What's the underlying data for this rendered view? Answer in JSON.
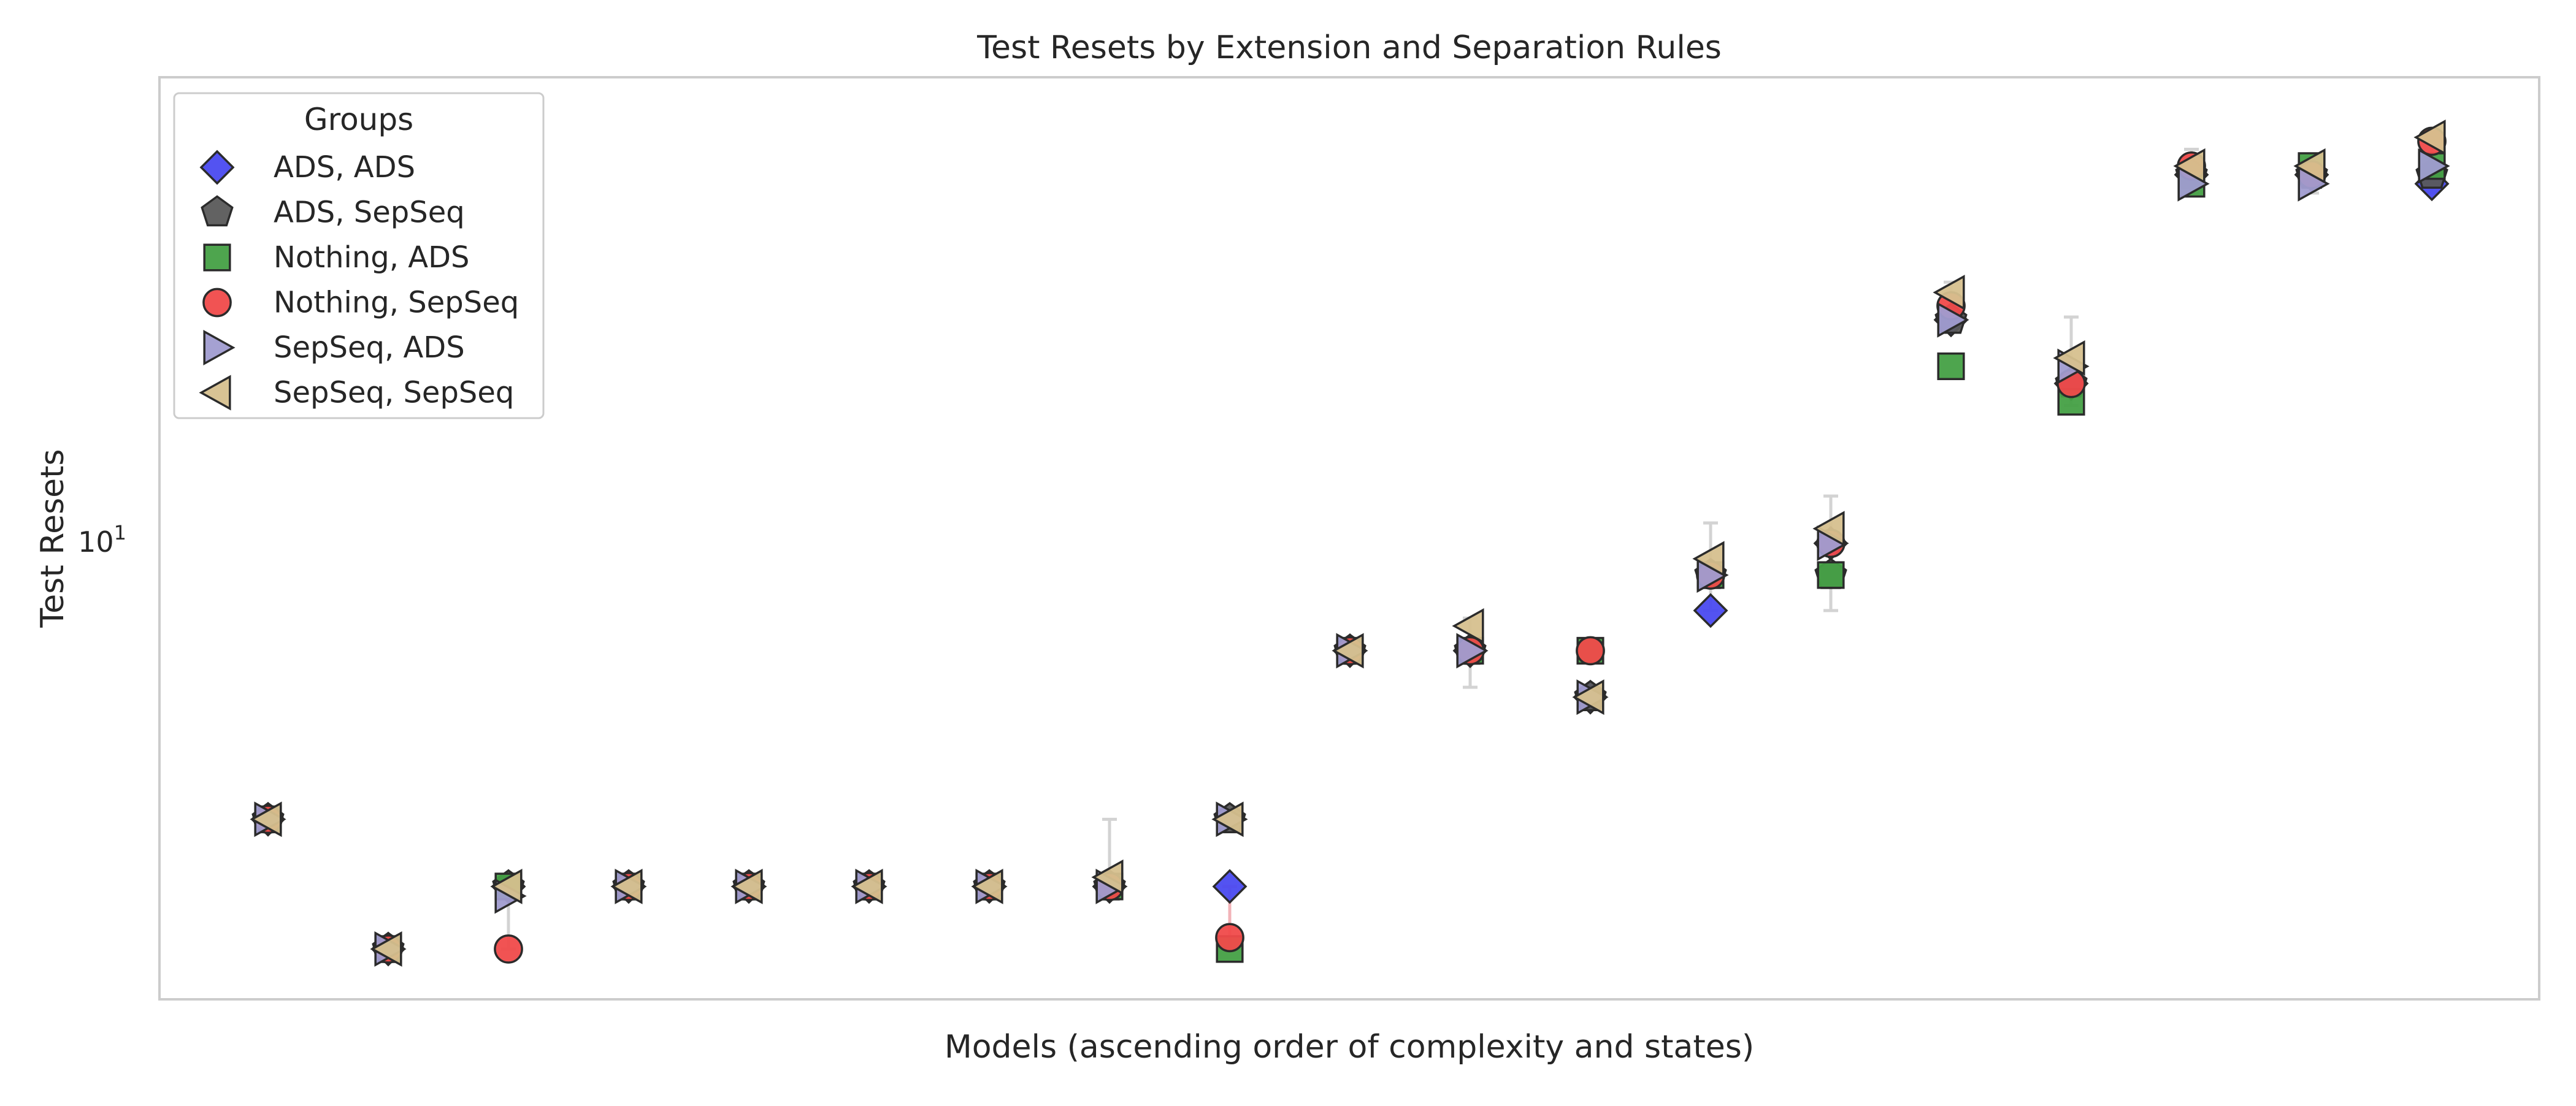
{
  "chart_data": {
    "type": "scatter",
    "title": "Test Resets by Extension and Separation Rules",
    "xlabel": "Models (ascending order of complexity and states)",
    "ylabel": "Test Resets",
    "yscale": "log",
    "ylim": [
      2.2,
      47
    ],
    "y_tick_labels": [
      {
        "value": 10,
        "base": "10",
        "exp": "1"
      }
    ],
    "x": [
      1,
      2,
      3,
      4,
      5,
      6,
      7,
      8,
      9,
      10,
      11,
      12,
      13,
      14,
      15,
      16,
      17,
      18,
      19
    ],
    "grid": false,
    "legend": {
      "title": "Groups",
      "position": "top-left"
    },
    "series": [
      {
        "name": "ADS, ADS",
        "marker": "diamond",
        "color": "#4A4AF0",
        "values": [
          4,
          2.6,
          3.2,
          3.2,
          3.2,
          3.2,
          3.2,
          3.2,
          3.2,
          7,
          7,
          6,
          8,
          10,
          21,
          17,
          34,
          34,
          33
        ]
      },
      {
        "name": "ADS, SepSeq",
        "marker": "pentagon",
        "color": "#5A5A5A",
        "values": [
          4,
          2.6,
          3.2,
          3.2,
          3.2,
          3.2,
          3.2,
          3.2,
          4,
          7,
          7,
          6,
          9,
          9,
          21,
          17,
          34,
          34,
          34
        ]
      },
      {
        "name": "Nothing, ADS",
        "marker": "square",
        "color": "#44A044",
        "values": [
          4,
          2.6,
          3.2,
          3.2,
          3.2,
          3.2,
          3.2,
          3.2,
          2.6,
          7,
          7,
          7,
          9,
          9,
          18,
          16,
          33,
          35,
          35
        ]
      },
      {
        "name": "Nothing, SepSeq",
        "marker": "circle",
        "color": "#F04A4A",
        "values": [
          4,
          2.6,
          2.6,
          3.2,
          3.2,
          3.2,
          3.2,
          3.2,
          2.7,
          7,
          7,
          7,
          9,
          10,
          22,
          17,
          35,
          34,
          38
        ]
      },
      {
        "name": "SepSeq, ADS",
        "marker": "triangle-right",
        "color": "#A09CD0",
        "values": [
          4,
          2.6,
          3.1,
          3.2,
          3.2,
          3.2,
          3.2,
          3.2,
          4,
          7,
          7,
          6,
          9,
          10,
          21,
          18,
          33,
          33,
          35
        ]
      },
      {
        "name": "SepSeq, SepSeq",
        "marker": "triangle-left",
        "color": "#D6C08E",
        "values": [
          4,
          2.6,
          3.2,
          3.2,
          3.2,
          3.2,
          3.2,
          3.3,
          4,
          7,
          7.6,
          6,
          9.5,
          10.5,
          23,
          18.5,
          35,
          35,
          38.5
        ]
      }
    ],
    "error_bars": [
      {
        "x": 3,
        "low": 2.6,
        "high": 3.2,
        "color": "#d3d3d3"
      },
      {
        "x": 8,
        "low": 3.2,
        "high": 4,
        "color": "#d3d3d3"
      },
      {
        "x": 9,
        "low": 2.6,
        "high": 3.2,
        "color": "#f2b3b8"
      },
      {
        "x": 11,
        "low": 6.2,
        "high": 7.8,
        "color": "#d3d3d3"
      },
      {
        "x": 13,
        "low": 8,
        "high": 10.7,
        "color": "#d3d3d3"
      },
      {
        "x": 14,
        "low": 8,
        "high": 11.7,
        "color": "#d3d3d3"
      },
      {
        "x": 15,
        "low": 20.5,
        "high": 23.8,
        "color": "#d3d3d3"
      },
      {
        "x": 16,
        "low": 15.8,
        "high": 21.2,
        "color": "#d3d3d3"
      },
      {
        "x": 17,
        "low": 32,
        "high": 37,
        "color": "#d3d3d3"
      },
      {
        "x": 18,
        "low": 32,
        "high": 36,
        "color": "#d3d3d3"
      },
      {
        "x": 19,
        "low": 32,
        "high": 39,
        "color": "#d3d3d3"
      }
    ]
  }
}
